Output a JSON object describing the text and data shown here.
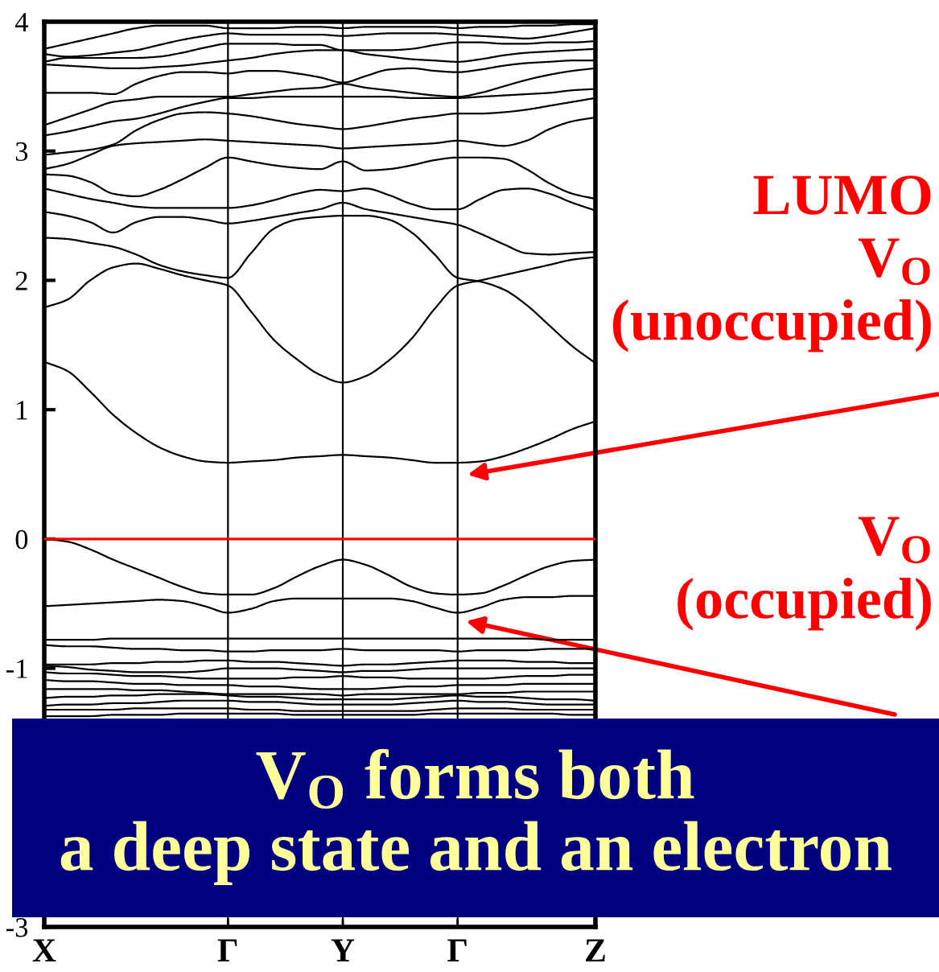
{
  "chart_data": {
    "type": "line",
    "categories": [
      "X",
      null,
      null,
      null,
      null,
      null,
      null,
      null,
      "Γ",
      null,
      null,
      null,
      null,
      "Y",
      null,
      null,
      null,
      null,
      "Γ",
      null,
      null,
      null,
      null,
      null,
      "Z"
    ],
    "ylim": [
      -3,
      4
    ],
    "yticks": [
      -3,
      -1,
      0,
      1,
      2,
      3,
      4
    ],
    "grid": "x",
    "series": [
      {
        "color": "#000000",
        "values": [
          3.79,
          3.83,
          3.87,
          3.91,
          3.95,
          3.97,
          3.97,
          3.97,
          3.95,
          3.95,
          3.95,
          3.96,
          3.96,
          3.95,
          3.96,
          3.96,
          3.96,
          3.96,
          3.95,
          3.96,
          3.96,
          3.97,
          3.97,
          3.98,
          3.98
        ]
      },
      {
        "color": "#000000",
        "values": [
          3.75,
          3.73,
          3.74,
          3.76,
          3.78,
          3.82,
          3.86,
          3.89,
          3.91,
          3.9,
          3.9,
          3.9,
          3.9,
          3.89,
          3.9,
          3.91,
          3.91,
          3.91,
          3.9,
          3.89,
          3.88,
          3.87,
          3.89,
          3.92,
          3.95
        ]
      },
      {
        "color": "#000000",
        "values": [
          3.69,
          3.72,
          3.72,
          3.72,
          3.72,
          3.73,
          3.76,
          3.8,
          3.83,
          3.83,
          3.83,
          3.82,
          3.82,
          3.78,
          3.78,
          3.78,
          3.79,
          3.82,
          3.84,
          3.84,
          3.83,
          3.83,
          3.84,
          3.84,
          3.85
        ]
      },
      {
        "color": "#000000",
        "values": [
          3.67,
          3.66,
          3.65,
          3.64,
          3.64,
          3.65,
          3.66,
          3.68,
          3.7,
          3.72,
          3.75,
          3.77,
          3.78,
          3.78,
          3.75,
          3.73,
          3.71,
          3.7,
          3.69,
          3.71,
          3.74,
          3.76,
          3.77,
          3.78,
          3.79
        ]
      },
      {
        "color": "#000000",
        "values": [
          3.45,
          3.45,
          3.45,
          3.44,
          3.52,
          3.58,
          3.61,
          3.61,
          3.6,
          3.62,
          3.62,
          3.6,
          3.57,
          3.53,
          3.58,
          3.63,
          3.64,
          3.62,
          3.61,
          3.63,
          3.66,
          3.68,
          3.69,
          3.7,
          3.7
        ]
      },
      {
        "color": "#000000",
        "values": [
          3.2,
          3.26,
          3.32,
          3.38,
          3.4,
          3.42,
          3.42,
          3.42,
          3.42,
          3.44,
          3.46,
          3.48,
          3.49,
          3.52,
          3.49,
          3.47,
          3.45,
          3.43,
          3.42,
          3.45,
          3.5,
          3.55,
          3.59,
          3.62,
          3.64
        ]
      },
      {
        "color": "#000000",
        "values": [
          3.12,
          3.15,
          3.19,
          3.23,
          3.25,
          3.29,
          3.34,
          3.38,
          3.41,
          3.41,
          3.42,
          3.42,
          3.42,
          3.42,
          3.42,
          3.42,
          3.41,
          3.41,
          3.41,
          3.42,
          3.43,
          3.44,
          3.45,
          3.47,
          3.48
        ]
      },
      {
        "color": "#000000",
        "values": [
          2.97,
          2.99,
          3.01,
          3.05,
          3.16,
          3.24,
          3.29,
          3.3,
          3.29,
          3.27,
          3.24,
          3.21,
          3.19,
          3.17,
          3.19,
          3.22,
          3.25,
          3.27,
          3.29,
          3.29,
          3.3,
          3.32,
          3.35,
          3.38,
          3.41
        ]
      },
      {
        "color": "#000000",
        "values": [
          2.86,
          2.9,
          2.97,
          3.04,
          3.06,
          3.07,
          3.08,
          3.09,
          3.08,
          3.07,
          3.06,
          3.05,
          3.04,
          3.02,
          3.03,
          3.04,
          3.05,
          3.06,
          3.08,
          3.06,
          3.04,
          3.08,
          3.17,
          3.23,
          3.26
        ]
      },
      {
        "color": "#000000",
        "values": [
          2.82,
          2.81,
          2.76,
          2.67,
          2.65,
          2.7,
          2.78,
          2.87,
          2.95,
          2.92,
          2.89,
          2.87,
          2.86,
          2.92,
          2.85,
          2.86,
          2.89,
          2.93,
          2.95,
          2.95,
          2.94,
          2.86,
          2.75,
          2.67,
          2.63
        ]
      },
      {
        "color": "#000000",
        "values": [
          2.71,
          2.67,
          2.63,
          2.6,
          2.57,
          2.56,
          2.56,
          2.56,
          2.56,
          2.58,
          2.62,
          2.67,
          2.7,
          2.69,
          2.71,
          2.66,
          2.59,
          2.55,
          2.55,
          2.63,
          2.7,
          2.71,
          2.67,
          2.6,
          2.54
        ]
      },
      {
        "color": "#000000",
        "values": [
          2.53,
          2.5,
          2.45,
          2.37,
          2.45,
          2.49,
          2.49,
          2.47,
          2.44,
          2.46,
          2.49,
          2.52,
          2.55,
          2.6,
          2.55,
          2.52,
          2.49,
          2.46,
          2.43,
          2.36,
          2.28,
          2.21,
          2.2,
          2.21,
          2.22
        ]
      },
      {
        "color": "#000000",
        "values": [
          2.33,
          2.32,
          2.29,
          2.26,
          2.2,
          2.12,
          2.07,
          2.04,
          2.02,
          2.21,
          2.4,
          2.47,
          2.49,
          2.5,
          2.5,
          2.47,
          2.37,
          2.2,
          2.02,
          1.99,
          1.93,
          1.81,
          1.65,
          1.49,
          1.36
        ]
      },
      {
        "color": "#000000",
        "values": [
          1.79,
          1.85,
          2.0,
          2.1,
          2.13,
          2.09,
          2.04,
          2.0,
          1.96,
          1.76,
          1.54,
          1.39,
          1.27,
          1.21,
          1.26,
          1.38,
          1.55,
          1.78,
          1.96,
          2.0,
          2.04,
          2.08,
          2.12,
          2.16,
          2.18
        ]
      },
      {
        "color": "#000000",
        "values": [
          1.37,
          1.3,
          1.14,
          0.96,
          0.82,
          0.71,
          0.64,
          0.6,
          0.59,
          0.6,
          0.61,
          0.63,
          0.64,
          0.65,
          0.64,
          0.63,
          0.61,
          0.59,
          0.59,
          0.6,
          0.64,
          0.7,
          0.77,
          0.85,
          0.91
        ]
      },
      {
        "color": "#000000",
        "values": [
          0.0,
          -0.02,
          -0.08,
          -0.16,
          -0.23,
          -0.3,
          -0.37,
          -0.42,
          -0.43,
          -0.43,
          -0.38,
          -0.29,
          -0.21,
          -0.16,
          -0.2,
          -0.28,
          -0.37,
          -0.42,
          -0.43,
          -0.42,
          -0.36,
          -0.28,
          -0.21,
          -0.17,
          -0.16
        ]
      },
      {
        "color": "#000000",
        "values": [
          -0.52,
          -0.51,
          -0.5,
          -0.49,
          -0.48,
          -0.47,
          -0.48,
          -0.52,
          -0.57,
          -0.54,
          -0.48,
          -0.46,
          -0.46,
          -0.46,
          -0.46,
          -0.46,
          -0.48,
          -0.53,
          -0.57,
          -0.53,
          -0.47,
          -0.45,
          -0.45,
          -0.44,
          -0.44
        ]
      },
      {
        "color": "#000000",
        "values": [
          -0.78,
          -0.78,
          -0.78,
          -0.77,
          -0.77,
          -0.77,
          -0.77,
          -0.77,
          -0.77,
          -0.77,
          -0.77,
          -0.77,
          -0.77,
          -0.77,
          -0.77,
          -0.77,
          -0.77,
          -0.77,
          -0.77,
          -0.77,
          -0.77,
          -0.77,
          -0.78,
          -0.78,
          -0.78
        ]
      },
      {
        "color": "#000000",
        "values": [
          -0.82,
          -0.83,
          -0.83,
          -0.84,
          -0.85,
          -0.85,
          -0.86,
          -0.86,
          -0.87,
          -0.87,
          -0.86,
          -0.86,
          -0.86,
          -0.85,
          -0.86,
          -0.86,
          -0.86,
          -0.86,
          -0.87,
          -0.86,
          -0.86,
          -0.86,
          -0.85,
          -0.85,
          -0.85
        ]
      },
      {
        "color": "#000000",
        "values": [
          -0.97,
          -0.97,
          -0.97,
          -0.96,
          -0.96,
          -0.95,
          -0.95,
          -0.94,
          -0.94,
          -0.95,
          -0.95,
          -0.96,
          -0.97,
          -0.98,
          -0.97,
          -0.97,
          -0.96,
          -0.95,
          -0.94,
          -0.94,
          -0.94,
          -0.95,
          -0.95,
          -0.96,
          -0.96
        ]
      },
      {
        "color": "#000000",
        "values": [
          -0.98,
          -0.99,
          -1.01,
          -1.02,
          -1.03,
          -1.03,
          -1.03,
          -1.02,
          -1.0,
          -1.0,
          -1.0,
          -1.01,
          -1.02,
          -1.03,
          -1.02,
          -1.02,
          -1.01,
          -1.0,
          -1.0,
          -1.0,
          -1.0,
          -1.0,
          -1.0,
          -1.0,
          -1.0
        ]
      },
      {
        "color": "#000000",
        "values": [
          -1.03,
          -1.04,
          -1.04,
          -1.05,
          -1.06,
          -1.06,
          -1.07,
          -1.08,
          -1.08,
          -1.08,
          -1.08,
          -1.07,
          -1.07,
          -1.06,
          -1.07,
          -1.07,
          -1.08,
          -1.08,
          -1.08,
          -1.08,
          -1.07,
          -1.06,
          -1.06,
          -1.05,
          -1.05
        ]
      },
      {
        "color": "#000000",
        "values": [
          -1.09,
          -1.1,
          -1.1,
          -1.11,
          -1.12,
          -1.12,
          -1.13,
          -1.13,
          -1.13,
          -1.14,
          -1.14,
          -1.15,
          -1.16,
          -1.16,
          -1.16,
          -1.15,
          -1.14,
          -1.14,
          -1.13,
          -1.13,
          -1.13,
          -1.12,
          -1.12,
          -1.12,
          -1.12
        ]
      },
      {
        "color": "#000000",
        "values": [
          -1.16,
          -1.16,
          -1.16,
          -1.16,
          -1.17,
          -1.17,
          -1.18,
          -1.19,
          -1.2,
          -1.2,
          -1.2,
          -1.2,
          -1.2,
          -1.21,
          -1.2,
          -1.2,
          -1.2,
          -1.2,
          -1.2,
          -1.19,
          -1.19,
          -1.18,
          -1.18,
          -1.18,
          -1.18
        ]
      },
      {
        "color": "#000000",
        "values": [
          -1.23,
          -1.22,
          -1.22,
          -1.21,
          -1.21,
          -1.2,
          -1.2,
          -1.2,
          -1.21,
          -1.22,
          -1.22,
          -1.23,
          -1.24,
          -1.24,
          -1.24,
          -1.24,
          -1.23,
          -1.22,
          -1.21,
          -1.22,
          -1.22,
          -1.23,
          -1.24,
          -1.24,
          -1.25
        ]
      },
      {
        "color": "#000000",
        "values": [
          -1.29,
          -1.28,
          -1.28,
          -1.27,
          -1.27,
          -1.26,
          -1.25,
          -1.25,
          -1.25,
          -1.26,
          -1.26,
          -1.27,
          -1.28,
          -1.28,
          -1.28,
          -1.28,
          -1.27,
          -1.26,
          -1.25,
          -1.26,
          -1.26,
          -1.27,
          -1.28,
          -1.28,
          -1.28
        ]
      },
      {
        "color": "#000000",
        "values": [
          -1.32,
          -1.32,
          -1.32,
          -1.32,
          -1.31,
          -1.31,
          -1.31,
          -1.31,
          -1.31,
          -1.32,
          -1.32,
          -1.33,
          -1.33,
          -1.33,
          -1.33,
          -1.33,
          -1.33,
          -1.32,
          -1.31,
          -1.31,
          -1.31,
          -1.32,
          -1.32,
          -1.32,
          -1.32
        ]
      },
      {
        "color": "#000000",
        "values": [
          -1.37,
          -1.37,
          -1.37,
          -1.36,
          -1.36,
          -1.36,
          -1.35,
          -1.35,
          -1.35,
          -1.35,
          -1.35,
          -1.36,
          -1.36,
          -1.36,
          -1.36,
          -1.36,
          -1.36,
          -1.35,
          -1.35,
          -1.35,
          -1.35,
          -1.35,
          -1.35,
          -1.36,
          -1.36
        ]
      }
    ],
    "ref_lines": [
      {
        "axis": "y",
        "value": 0,
        "color": "#ff0000"
      }
    ],
    "annotations": [
      "LUMO\nV$_{O}$\n(unoccupied)",
      "V$_{O}$\n(occupied)",
      "V$_{O}$ forms both\na deep state and an electron"
    ]
  }
}
